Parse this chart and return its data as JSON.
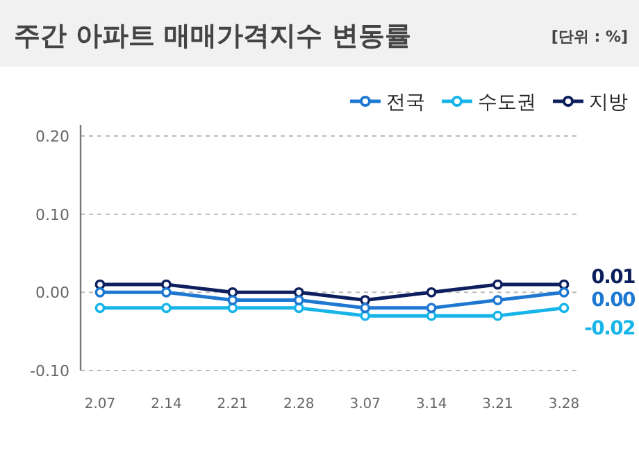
{
  "chart_data": {
    "type": "line",
    "title": "주간 아파트 매매가격지수 변동률",
    "annotations": [
      "[단위 : %]"
    ],
    "categories": [
      "2.07",
      "2.14",
      "2.21",
      "2.28",
      "3.07",
      "3.14",
      "3.21",
      "3.28"
    ],
    "series": [
      {
        "name": "전국",
        "color": "#1e78d2",
        "values": [
          0.0,
          0.0,
          -0.01,
          -0.01,
          -0.02,
          -0.02,
          -0.01,
          0.0
        ],
        "value_labels": [
          null,
          null,
          null,
          null,
          null,
          null,
          null,
          "0.00"
        ]
      },
      {
        "name": "수도권",
        "color": "#16b4e8",
        "values": [
          -0.02,
          -0.02,
          -0.02,
          -0.02,
          -0.03,
          -0.03,
          -0.03,
          -0.02
        ],
        "value_labels": [
          null,
          null,
          null,
          null,
          null,
          null,
          null,
          "-0.02"
        ]
      },
      {
        "name": "지방",
        "color": "#0d1f5c",
        "values": [
          0.01,
          0.01,
          0.0,
          0.0,
          -0.01,
          0.0,
          0.01,
          0.01
        ],
        "value_labels": [
          null,
          null,
          null,
          null,
          null,
          null,
          null,
          "0.01"
        ]
      }
    ],
    "ylim": [
      -0.1,
      0.2
    ],
    "yticks": [
      {
        "value": -0.1,
        "label": "-0.10"
      },
      {
        "value": 0.0,
        "label": "0.00"
      },
      {
        "value": 0.1,
        "label": "0.10"
      },
      {
        "value": 0.2,
        "label": "0.20"
      }
    ],
    "grid": "y",
    "legend": "top right",
    "marker": "circle",
    "line_style": "solid"
  }
}
